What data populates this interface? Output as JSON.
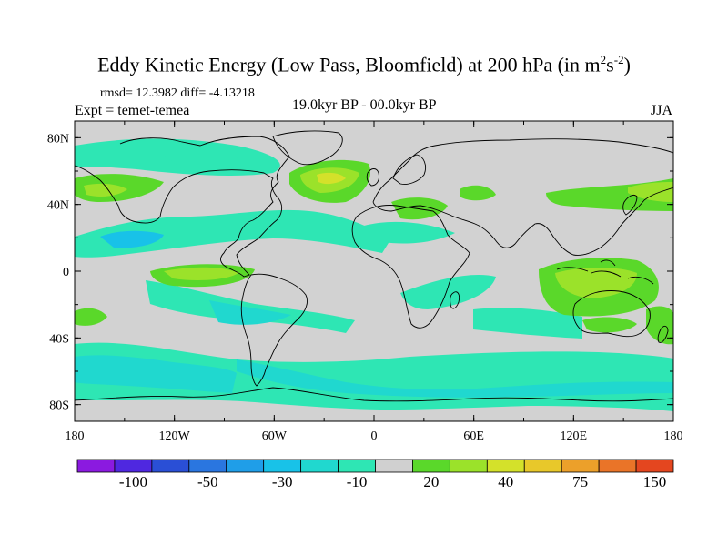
{
  "title": {
    "main": "Eddy Kinetic Energy (Low Pass, Bloomfield) at 200 hPa (in m",
    "sup1": "2",
    "mid": "s",
    "sup2": "-2",
    "end": ")"
  },
  "stats": "rmsd= 12.3982 diff= -4.13218",
  "experiment": "Expt = temet-temea",
  "period": "19.0kyr BP - 00.0kyr BP",
  "season": "JJA",
  "map": {
    "lat_ticks": [
      "80N",
      "40N",
      "0",
      "40S",
      "80S"
    ],
    "lon_ticks": [
      "180",
      "120W",
      "60W",
      "0",
      "60E",
      "120E",
      "180"
    ]
  },
  "colorbar": {
    "colors": [
      "#8b1ae0",
      "#4f28e0",
      "#2a4fd6",
      "#2a76e0",
      "#1f9ee8",
      "#18c2e8",
      "#20d8cf",
      "#2ee6b4",
      "#d0d0d0",
      "#5ad82a",
      "#9be22a",
      "#d4e12a",
      "#e8c82a",
      "#eca02a",
      "#ea7428",
      "#e4461f"
    ],
    "labels": [
      "-100",
      "-50",
      "-30",
      "-10",
      "20",
      "40",
      "75",
      "150"
    ]
  },
  "fill_colors": {
    "background": "#d2d2d2",
    "light_cyan": "#2ee6b4",
    "cyan": "#20d8cf",
    "blue_cyan": "#18c2e8",
    "light_green": "#9be22a",
    "green": "#5ad82a",
    "yellow": "#d4e12a"
  }
}
